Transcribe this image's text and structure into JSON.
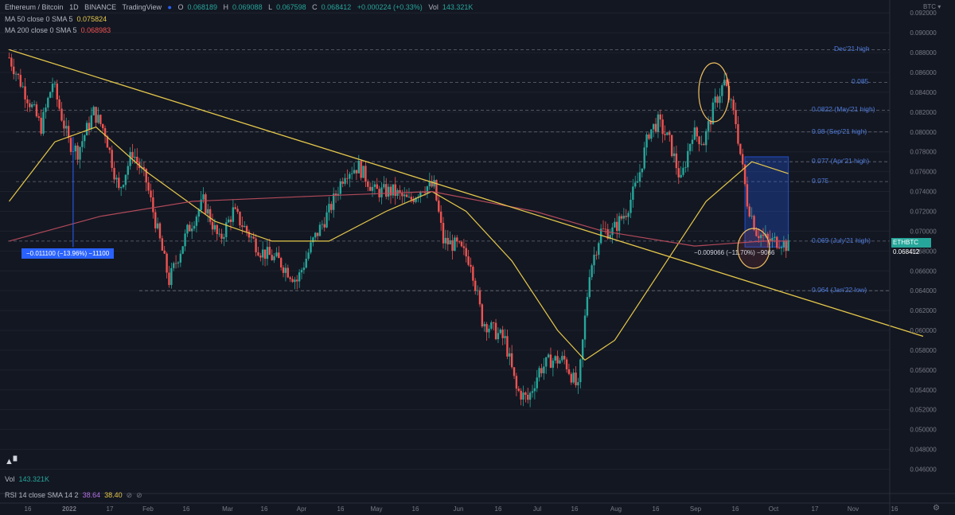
{
  "header": {
    "symbol": "Ethereum / Bitcoin",
    "interval": "1D",
    "exchange": "BINANCE",
    "source": "TradingView",
    "ohlc": {
      "o_label": "O",
      "o": "0.068189",
      "h_label": "H",
      "h": "0.069088",
      "l_label": "L",
      "l": "0.067598",
      "c_label": "C",
      "c": "0.068412",
      "chg": "+0.000224 (+0.33%)"
    },
    "vol_label": "Vol",
    "vol": "143.321K",
    "ma50": {
      "label": "MA 50 close 0 SMA 5",
      "value": "0.075824"
    },
    "ma200": {
      "label": "MA 200 close 0 SMA 5",
      "value": "0.068983"
    }
  },
  "currency_label": "BTC",
  "live_price_tag": {
    "symbol": "ETHBTC",
    "value": "0.068412"
  },
  "levels": [
    {
      "price": 0.0883,
      "label": "Dec'21 high"
    },
    {
      "price": 0.085,
      "label": "0.085"
    },
    {
      "price": 0.0822,
      "label": "0.0822 (May'21 high)"
    },
    {
      "price": 0.08,
      "label": "0.08 (Sep'21 high)"
    },
    {
      "price": 0.077,
      "label": "0.077 (Apr'21 high)"
    },
    {
      "price": 0.075,
      "label": "0.075"
    },
    {
      "price": 0.069,
      "label": "0.069 (July'21 high)"
    },
    {
      "price": 0.064,
      "label": "0.064 (Jan'22 low)"
    }
  ],
  "measure_left": "−0.011100 (−13.96%) −11100",
  "measure_right": "−0.009066 (−11.70%) −9066",
  "bottom": {
    "vol_label": "Vol",
    "vol_value": "143.321K",
    "rsi_label": "RSI 14 close SMA 14 2",
    "rsi_value": "38.64",
    "rsi_ma": "38.40"
  },
  "colors": {
    "up": "#26a69a",
    "down": "#ef5350",
    "ma50": "#e6c84a",
    "ma200": "#b24a5a",
    "level": "#4d7bdc",
    "bg": "#131722"
  },
  "chart_data": {
    "type": "candlestick",
    "title": "Ethereum / Bitcoin",
    "ylim": [
      0.0458,
      0.0925
    ],
    "ytick_labels": [
      "0.092000",
      "0.090000",
      "0.088000",
      "0.086000",
      "0.084000",
      "0.082000",
      "0.080000",
      "0.078000",
      "0.076000",
      "0.074000",
      "0.072000",
      "0.070000",
      "0.068000",
      "0.066000",
      "0.064000",
      "0.062000",
      "0.060000",
      "0.058000",
      "0.056000",
      "0.054000",
      "0.052000",
      "0.050000",
      "0.048000",
      "0.046000"
    ],
    "xtick_labels": [
      "16",
      "2022",
      "17",
      "Feb",
      "16",
      "Mar",
      "16",
      "Apr",
      "16",
      "May",
      "16",
      "Jun",
      "16",
      "Jul",
      "16",
      "Aug",
      "16",
      "Sep",
      "16",
      "Oct",
      "17",
      "Nov",
      "16"
    ],
    "close_path": [
      [
        0,
        0.0875
      ],
      [
        7,
        0.084
      ],
      [
        14,
        0.0805
      ],
      [
        19,
        0.085
      ],
      [
        26,
        0.079
      ],
      [
        30,
        0.078
      ],
      [
        37,
        0.082
      ],
      [
        42,
        0.08
      ],
      [
        48,
        0.074
      ],
      [
        54,
        0.078
      ],
      [
        60,
        0.075
      ],
      [
        66,
        0.069
      ],
      [
        70,
        0.065
      ],
      [
        78,
        0.07
      ],
      [
        85,
        0.073
      ],
      [
        92,
        0.069
      ],
      [
        98,
        0.072
      ],
      [
        104,
        0.07
      ],
      [
        110,
        0.068
      ],
      [
        118,
        0.067
      ],
      [
        126,
        0.065
      ],
      [
        133,
        0.069
      ],
      [
        140,
        0.072
      ],
      [
        147,
        0.076
      ],
      [
        153,
        0.0765
      ],
      [
        160,
        0.074
      ],
      [
        168,
        0.074
      ],
      [
        175,
        0.073
      ],
      [
        181,
        0.0745
      ],
      [
        186,
        0.0745
      ],
      [
        190,
        0.069
      ],
      [
        196,
        0.0685
      ],
      [
        202,
        0.067
      ],
      [
        207,
        0.061
      ],
      [
        212,
        0.06
      ],
      [
        217,
        0.059
      ],
      [
        222,
        0.054
      ],
      [
        227,
        0.053
      ],
      [
        232,
        0.056
      ],
      [
        237,
        0.057
      ],
      [
        243,
        0.057
      ],
      [
        249,
        0.054
      ],
      [
        254,
        0.066
      ],
      [
        259,
        0.07
      ],
      [
        264,
        0.07
      ],
      [
        270,
        0.072
      ],
      [
        275,
        0.075
      ],
      [
        280,
        0.08
      ],
      [
        284,
        0.081
      ],
      [
        289,
        0.079
      ],
      [
        294,
        0.075
      ],
      [
        299,
        0.08
      ],
      [
        304,
        0.079
      ],
      [
        309,
        0.083
      ],
      [
        313,
        0.085
      ],
      [
        318,
        0.081
      ],
      [
        323,
        0.073
      ],
      [
        327,
        0.07
      ],
      [
        332,
        0.069
      ],
      [
        338,
        0.069
      ],
      [
        341,
        0.0684
      ]
    ],
    "series": [
      {
        "name": "MA 50",
        "points": [
          [
            0,
            0.073
          ],
          [
            20,
            0.079
          ],
          [
            38,
            0.0805
          ],
          [
            60,
            0.076
          ],
          [
            90,
            0.071
          ],
          [
            115,
            0.069
          ],
          [
            140,
            0.069
          ],
          [
            165,
            0.072
          ],
          [
            185,
            0.074
          ],
          [
            200,
            0.072
          ],
          [
            220,
            0.067
          ],
          [
            240,
            0.06
          ],
          [
            252,
            0.057
          ],
          [
            265,
            0.059
          ],
          [
            285,
            0.066
          ],
          [
            305,
            0.073
          ],
          [
            325,
            0.077
          ],
          [
            341,
            0.0758
          ]
        ]
      },
      {
        "name": "MA 200",
        "points": [
          [
            0,
            0.069
          ],
          [
            40,
            0.0715
          ],
          [
            80,
            0.073
          ],
          [
            130,
            0.0735
          ],
          [
            185,
            0.074
          ],
          [
            230,
            0.072
          ],
          [
            260,
            0.07
          ],
          [
            300,
            0.0685
          ],
          [
            330,
            0.069
          ],
          [
            341,
            0.069
          ]
        ]
      }
    ],
    "trendline": [
      [
        0,
        0.0883
      ],
      [
        400,
        0.0594
      ]
    ],
    "day_range": [
      -4,
      400
    ]
  }
}
